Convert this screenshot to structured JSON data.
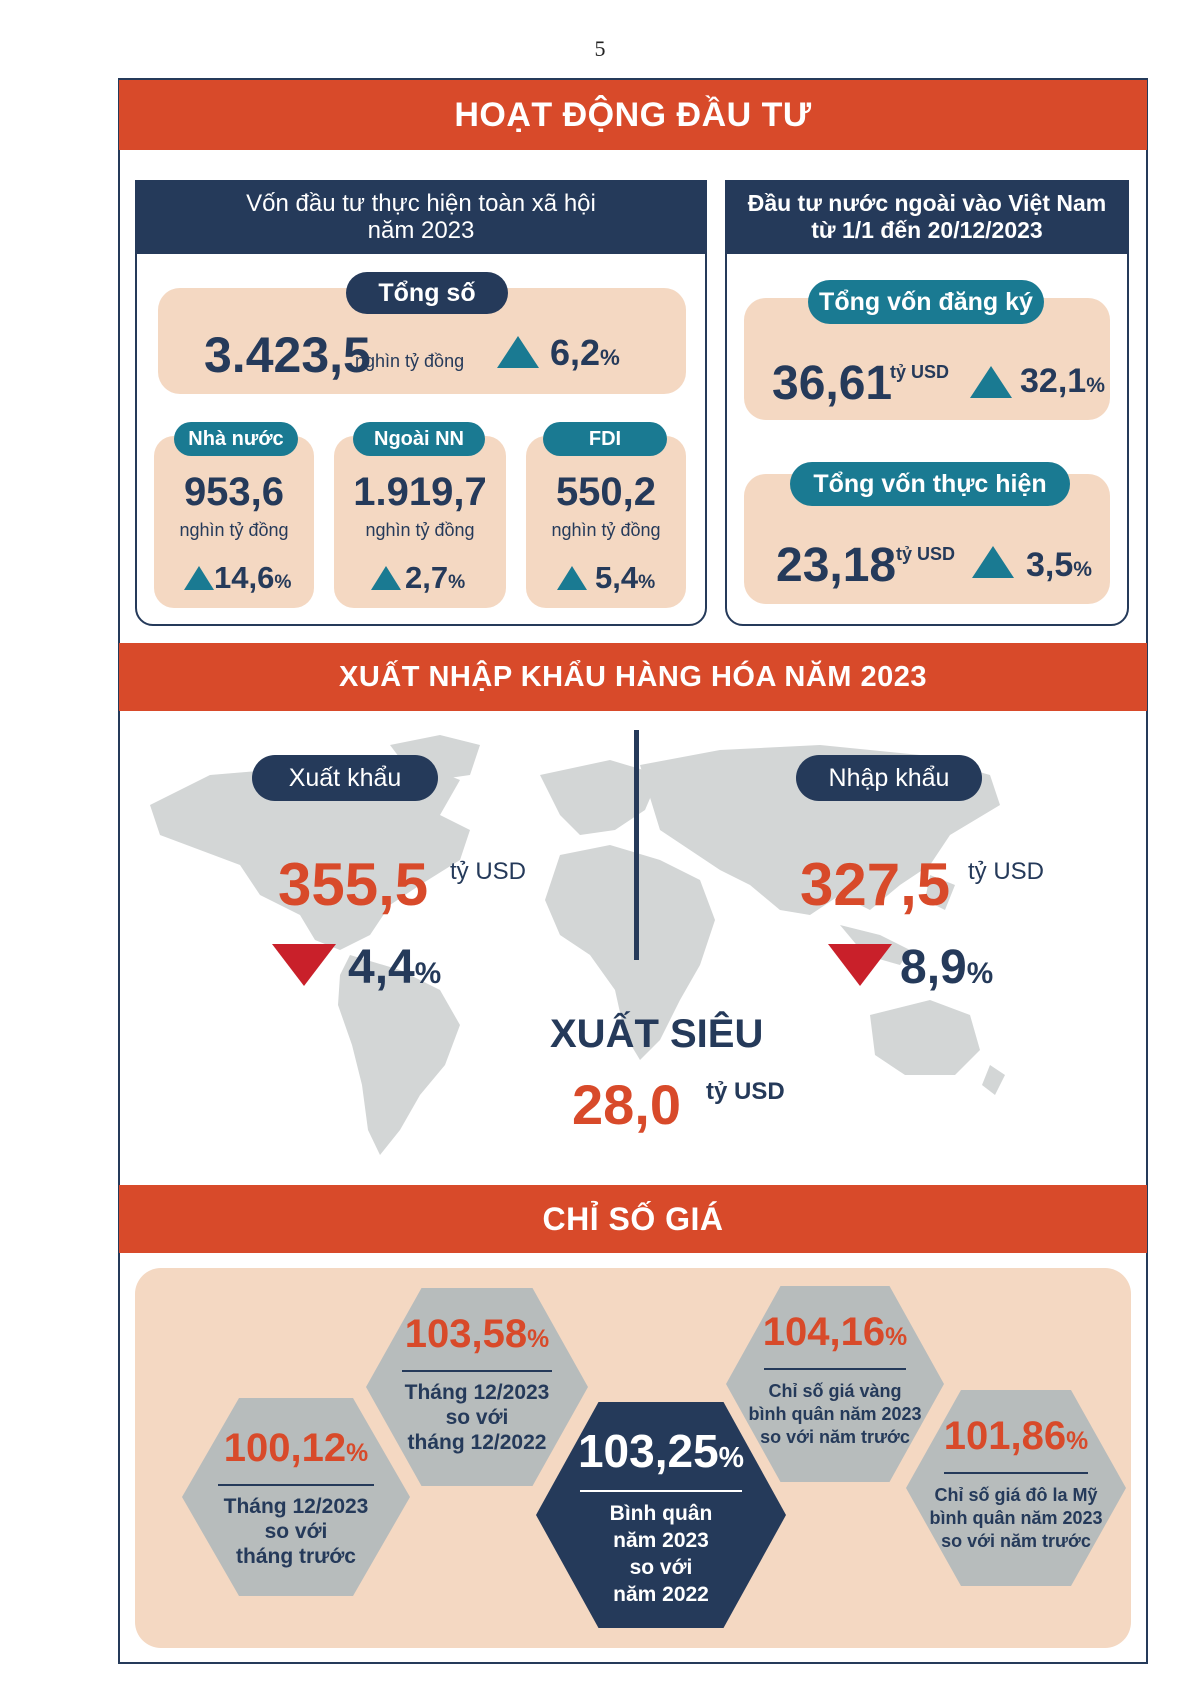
{
  "page_number": "5",
  "investment": {
    "banner": "HOẠT ĐỘNG ĐẦU TƯ",
    "social": {
      "title_line1": "Vốn đầu tư thực hiện toàn xã hội",
      "title_line2": "năm 2023",
      "total_label": "Tổng số",
      "total_value": "3.423,5",
      "total_unit": "nghìn tỷ đồng",
      "total_change": "6,2",
      "items": [
        {
          "label": "Nhà nước",
          "value": "953,6",
          "unit": "nghìn tỷ đồng",
          "change": "14,6"
        },
        {
          "label": "Ngoài NN",
          "value": "1.919,7",
          "unit": "nghìn tỷ đồng",
          "change": "2,7"
        },
        {
          "label": "FDI",
          "value": "550,2",
          "unit": "nghìn tỷ đồng",
          "change": "5,4"
        }
      ]
    },
    "fdi": {
      "title_line1": "Đầu tư nước ngoài vào Việt Nam",
      "title_line2": "từ 1/1 đến 20/12/2023",
      "registered_label": "Tổng vốn đăng ký",
      "registered_value": "36,61",
      "registered_unit": "tỷ USD",
      "registered_change": "32,1",
      "implemented_label": "Tổng vốn thực hiện",
      "implemented_value": "23,18",
      "implemented_unit": "tỷ USD",
      "implemented_change": "3,5"
    }
  },
  "trade": {
    "banner": "XUẤT NHẬP KHẨU HÀNG HÓA  NĂM 2023",
    "export_label": "Xuất khẩu",
    "export_value": "355,5",
    "export_unit": "tỷ USD",
    "export_change": "4,4",
    "import_label": "Nhập khẩu",
    "import_value": "327,5",
    "import_unit": "tỷ USD",
    "import_change": "8,9",
    "surplus_label": "XUẤT SIÊU",
    "surplus_value": "28,0",
    "surplus_unit": "tỷ USD"
  },
  "prices": {
    "banner": "CHỈ SỐ GIÁ",
    "pct_sign": "%",
    "hexes": [
      {
        "value": "100,12",
        "lines": [
          "Tháng 12/2023",
          "so với",
          "tháng trước"
        ]
      },
      {
        "value": "103,58",
        "lines": [
          "Tháng 12/2023",
          "so với",
          "tháng 12/2022"
        ]
      },
      {
        "value": "103,25",
        "lines": [
          "Bình quân",
          "năm 2023",
          "so với",
          "năm 2022"
        ]
      },
      {
        "value": "104,16",
        "lines": [
          "Chỉ số giá vàng",
          "bình quân năm 2023",
          "so với năm trước"
        ]
      },
      {
        "value": "101,86",
        "lines": [
          "Chỉ số giá đô la Mỹ",
          "bình quân năm 2023",
          "so với năm trước"
        ]
      }
    ]
  },
  "colors": {
    "navy": "#253a5a",
    "red": "#d84a2a",
    "teal": "#1a7a92",
    "beige": "#f4d8c2",
    "gray": "#b7bcbc"
  }
}
